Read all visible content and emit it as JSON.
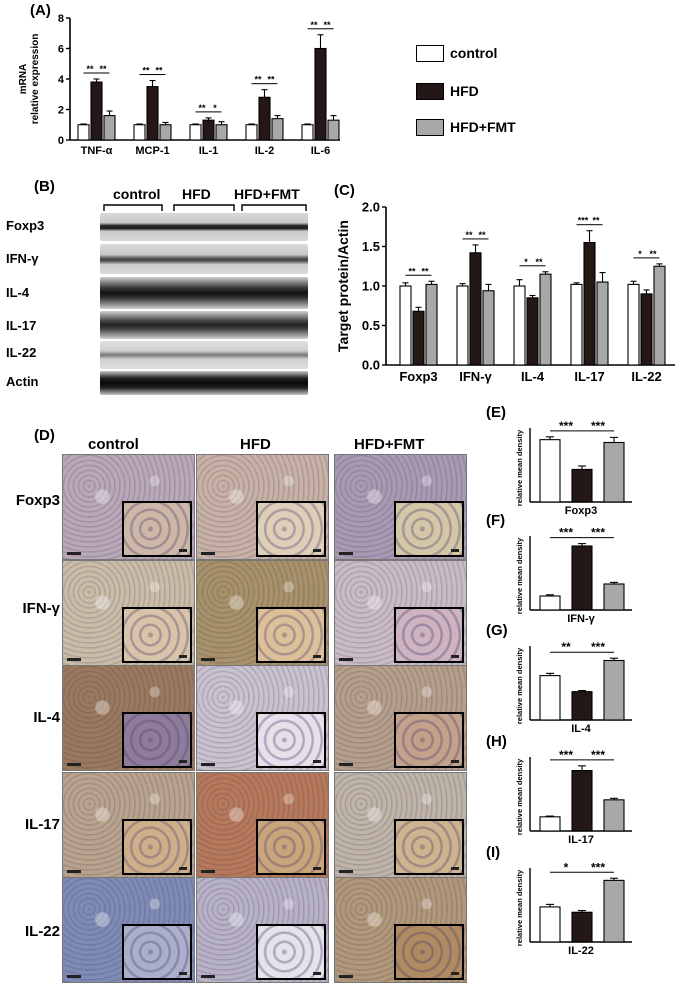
{
  "panel_labels": {
    "a": "(A)",
    "b": "(B)",
    "c": "(C)",
    "d": "(D)",
    "e": "(E)",
    "f": "(F)",
    "g": "(G)",
    "h": "(H)",
    "i": "(I)"
  },
  "legend": {
    "items": [
      {
        "label": "control",
        "color": "#ffffff"
      },
      {
        "label": "HFD",
        "color": "#231815"
      },
      {
        "label": "HFD+FMT",
        "color": "#a8a8a8"
      }
    ]
  },
  "colors": {
    "control": "#ffffff",
    "hfd": "#231815",
    "fmt": "#a8a8a8"
  },
  "blot": {
    "groups": [
      "control",
      "HFD",
      "HFD+FMT"
    ],
    "rows": [
      "Foxp3",
      "IFN-γ",
      "IL-4",
      "IL-17",
      "IL-22",
      "Actin"
    ]
  },
  "ihc": {
    "columns": [
      "control",
      "HFD",
      "HFD+FMT"
    ],
    "rows": [
      "Foxp3",
      "IFN-γ",
      "IL-4",
      "IL-17",
      "IL-22"
    ]
  },
  "chart_data": [
    {
      "id": "A",
      "type": "bar",
      "ylabel": "mRNA relative expression",
      "ylabel_lines": [
        "mRNA",
        "relative expression"
      ],
      "ylim": [
        0,
        8
      ],
      "yticks": [
        0,
        2,
        4,
        6,
        8
      ],
      "categories": [
        "TNF-α",
        "MCP-1",
        "IL-1",
        "IL-2",
        "IL-6"
      ],
      "series": [
        {
          "name": "control",
          "values": [
            1.0,
            1.0,
            1.0,
            1.0,
            1.0
          ],
          "errors": [
            0.05,
            0.05,
            0.05,
            0.05,
            0.05
          ]
        },
        {
          "name": "HFD",
          "values": [
            3.8,
            3.5,
            1.3,
            2.8,
            6.0
          ],
          "errors": [
            0.2,
            0.4,
            0.15,
            0.5,
            0.9
          ]
        },
        {
          "name": "HFD+FMT",
          "values": [
            1.6,
            1.0,
            1.0,
            1.4,
            1.3
          ],
          "errors": [
            0.3,
            0.15,
            0.2,
            0.2,
            0.3
          ]
        }
      ],
      "significance": [
        [
          "**",
          "**"
        ],
        [
          "**",
          "**"
        ],
        [
          "**",
          "*"
        ],
        [
          "**",
          "**"
        ],
        [
          "**",
          "**"
        ]
      ]
    },
    {
      "id": "C",
      "type": "bar",
      "ylabel": "Target protein/Actin",
      "ylim": [
        0,
        2.0
      ],
      "yticks": [
        "0.0",
        "0.5",
        "1.0",
        "1.5",
        "2.0"
      ],
      "categories": [
        "Foxp3",
        "IFN-γ",
        "IL-4",
        "IL-17",
        "IL-22"
      ],
      "series": [
        {
          "name": "control",
          "values": [
            1.0,
            1.0,
            1.0,
            1.02,
            1.02
          ],
          "errors": [
            0.04,
            0.03,
            0.08,
            0.02,
            0.04
          ]
        },
        {
          "name": "HFD",
          "values": [
            0.68,
            1.42,
            0.85,
            1.55,
            0.9
          ],
          "errors": [
            0.05,
            0.1,
            0.03,
            0.15,
            0.05
          ]
        },
        {
          "name": "HFD+FMT",
          "values": [
            1.02,
            0.94,
            1.15,
            1.05,
            1.25
          ],
          "errors": [
            0.04,
            0.08,
            0.03,
            0.12,
            0.03
          ]
        }
      ],
      "significance": [
        [
          "**",
          "**"
        ],
        [
          "**",
          "**"
        ],
        [
          "*",
          "**"
        ],
        [
          "***",
          "**"
        ],
        [
          "*",
          "**"
        ]
      ]
    },
    {
      "id": "E",
      "type": "bar",
      "ylabel": "relative mean density",
      "xlabel": "Foxp3",
      "categories": [
        "control",
        "HFD",
        "HFD+FMT"
      ],
      "values": [
        22,
        11.5,
        21
      ],
      "errors": [
        1.0,
        1.2,
        1.8
      ],
      "ymax": 24,
      "significance": [
        "***",
        "***"
      ]
    },
    {
      "id": "F",
      "type": "bar",
      "ylabel": "relative mean density",
      "xlabel": "IFN-γ",
      "categories": [
        "control",
        "HFD",
        "HFD+FMT"
      ],
      "values": [
        7,
        32,
        13
      ],
      "errors": [
        0.6,
        1.2,
        0.8
      ],
      "ymax": 34,
      "significance": [
        "***",
        "***"
      ]
    },
    {
      "id": "G",
      "type": "bar",
      "ylabel": "relative mean density",
      "xlabel": "IL-4",
      "categories": [
        "control",
        "HFD",
        "HFD+FMT"
      ],
      "values": [
        23.5,
        15,
        31.5
      ],
      "errors": [
        1.2,
        0.6,
        1.2
      ],
      "ymax": 36,
      "significance": [
        "**",
        "***"
      ]
    },
    {
      "id": "H",
      "type": "bar",
      "ylabel": "relative mean density",
      "xlabel": "IL-17",
      "categories": [
        "control",
        "HFD",
        "HFD+FMT"
      ],
      "values": [
        7.5,
        32,
        16.5
      ],
      "errors": [
        0.4,
        2.5,
        0.8
      ],
      "ymax": 36,
      "significance": [
        "***",
        "***"
      ]
    },
    {
      "id": "I",
      "type": "bar",
      "ylabel": "relative mean density",
      "xlabel": "IL-22",
      "categories": [
        "control",
        "HFD",
        "HFD+FMT"
      ],
      "values": [
        16.5,
        14,
        29
      ],
      "errors": [
        1.2,
        0.8,
        1.0
      ],
      "ymax": 32,
      "significance": [
        "*",
        "***"
      ]
    }
  ]
}
